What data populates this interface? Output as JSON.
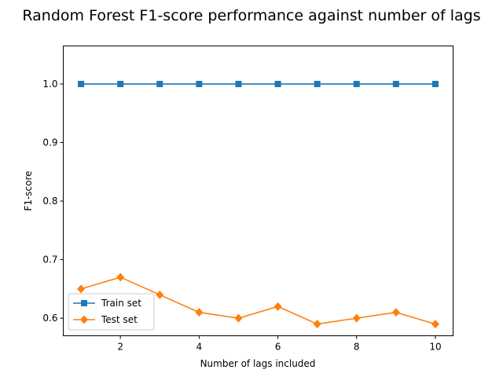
{
  "chart_data": {
    "type": "line",
    "title": "Random Forest F1-score performance against number of lags",
    "xlabel": "Number of lags included",
    "ylabel": "F1-score",
    "x": [
      1,
      2,
      3,
      4,
      5,
      6,
      7,
      8,
      9,
      10
    ],
    "xlim": [
      0.55,
      10.45
    ],
    "ylim": [
      0.57,
      1.065
    ],
    "xticks": [
      2,
      4,
      6,
      8,
      10
    ],
    "yticks": [
      0.6,
      0.7,
      0.8,
      0.9,
      1.0
    ],
    "xtick_labels": [
      "2",
      "4",
      "6",
      "8",
      "10"
    ],
    "ytick_labels": [
      "0.6",
      "0.7",
      "0.8",
      "0.9",
      "1.0"
    ],
    "grid": false,
    "legend_position": "lower-left",
    "series": [
      {
        "name": "Train set",
        "color": "#1f77b4",
        "marker": "square",
        "values": [
          1.0,
          1.0,
          1.0,
          1.0,
          1.0,
          1.0,
          1.0,
          1.0,
          1.0,
          1.0
        ]
      },
      {
        "name": "Test set",
        "color": "#ff7f0e",
        "marker": "diamond",
        "values": [
          0.65,
          0.67,
          0.64,
          0.61,
          0.6,
          0.62,
          0.59,
          0.6,
          0.61,
          0.59
        ]
      }
    ]
  }
}
